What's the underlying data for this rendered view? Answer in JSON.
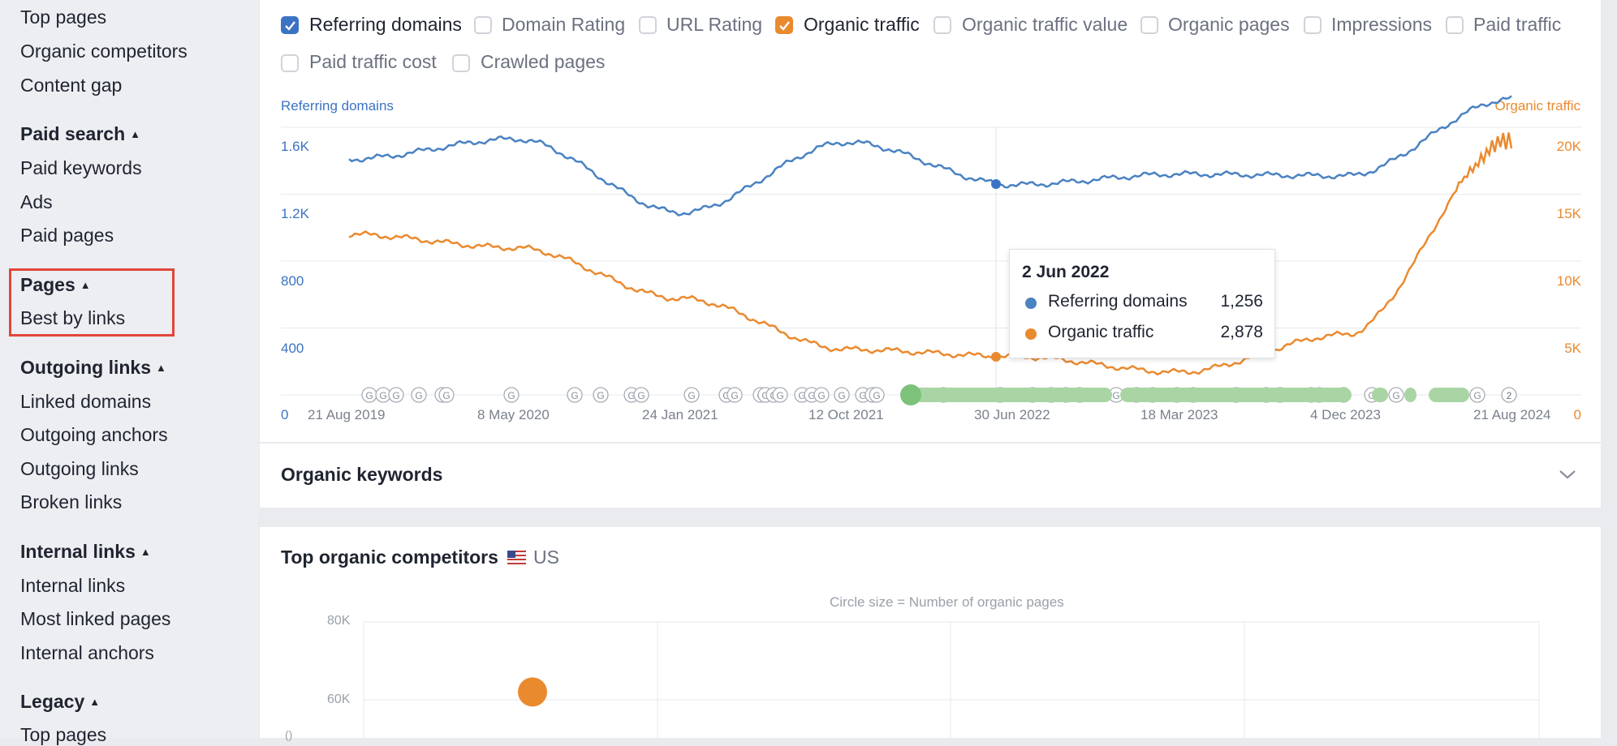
{
  "sidebar": {
    "top_items": [
      "Top pages",
      "Organic competitors",
      "Content gap"
    ],
    "paid_search": {
      "heading": "Paid search",
      "items": [
        "Paid keywords",
        "Ads",
        "Paid pages"
      ]
    },
    "pages": {
      "heading": "Pages",
      "items": [
        "Best by links"
      ]
    },
    "outgoing_links": {
      "heading": "Outgoing links",
      "items": [
        "Linked domains",
        "Outgoing anchors",
        "Outgoing links",
        "Broken links"
      ]
    },
    "internal_links": {
      "heading": "Internal links",
      "items": [
        "Internal links",
        "Most linked pages",
        "Internal anchors"
      ]
    },
    "legacy": {
      "heading": "Legacy",
      "items": [
        "Top pages"
      ]
    },
    "caret": "▲"
  },
  "metrics": [
    {
      "label": "Referring domains",
      "checked": true,
      "color": "#3a73c4"
    },
    {
      "label": "Domain Rating",
      "checked": false
    },
    {
      "label": "URL Rating",
      "checked": false
    },
    {
      "label": "Organic traffic",
      "checked": true,
      "color": "#ea8a2f"
    },
    {
      "label": "Organic traffic value",
      "checked": false
    },
    {
      "label": "Organic pages",
      "checked": false
    },
    {
      "label": "Impressions",
      "checked": false
    },
    {
      "label": "Paid traffic",
      "checked": false
    },
    {
      "label": "Paid traffic cost",
      "checked": false
    },
    {
      "label": "Crawled pages",
      "checked": false
    }
  ],
  "chart": {
    "left_axis_title": "Referring domains",
    "right_axis_title": "Organic traffic",
    "left_ticks": [
      "1.6K",
      "1.2K",
      "800",
      "400",
      "0"
    ],
    "right_ticks": [
      "20K",
      "15K",
      "10K",
      "5K",
      "0"
    ],
    "x_ticks": [
      "21 Aug 2019",
      "8 May 2020",
      "24 Jan 2021",
      "12 Oct 2021",
      "30 Jun 2022",
      "18 Mar 2023",
      "4 Dec 2023",
      "21 Aug 2024"
    ],
    "annotation_label": "G",
    "annotation_label_count": "2",
    "tooltip": {
      "date": "2 Jun 2022",
      "rows": [
        {
          "label": "Referring domains",
          "value": "1,256",
          "color": "#3a73c4"
        },
        {
          "label": "Organic traffic",
          "value": "2,878",
          "color": "#ea8a2f"
        }
      ]
    }
  },
  "chart_data": {
    "type": "line",
    "x": [
      "21 Aug 2019",
      "8 May 2020",
      "24 Jan 2021",
      "12 Oct 2021",
      "30 Jun 2022",
      "18 Mar 2023",
      "4 Dec 2023",
      "21 Aug 2024"
    ],
    "series": [
      {
        "name": "Referring domains",
        "axis": "left",
        "color": "#3a73c4",
        "values": [
          1410,
          1530,
          1090,
          1510,
          1256,
          1320,
          1310,
          1770
        ]
      },
      {
        "name": "Organic traffic",
        "axis": "right",
        "color": "#ea8a2f",
        "values": [
          12000,
          11000,
          7200,
          3400,
          2878,
          1700,
          4500,
          19000
        ]
      }
    ],
    "ylim_left": [
      0,
      1600
    ],
    "ylim_right": [
      0,
      20000
    ],
    "xlabel": "",
    "ylabel_left": "Referring domains",
    "ylabel_right": "Organic traffic",
    "grid": true
  },
  "organic_keywords": {
    "title": "Organic keywords",
    "chevron": "⌄"
  },
  "competitors": {
    "title": "Top organic competitors",
    "country": "US",
    "note": "Circle size = Number of organic pages",
    "y_ticks": [
      "80K",
      "60K"
    ],
    "y_partial_tick": "()",
    "point": {
      "y": 62000,
      "color": "#ea8a2f"
    }
  }
}
